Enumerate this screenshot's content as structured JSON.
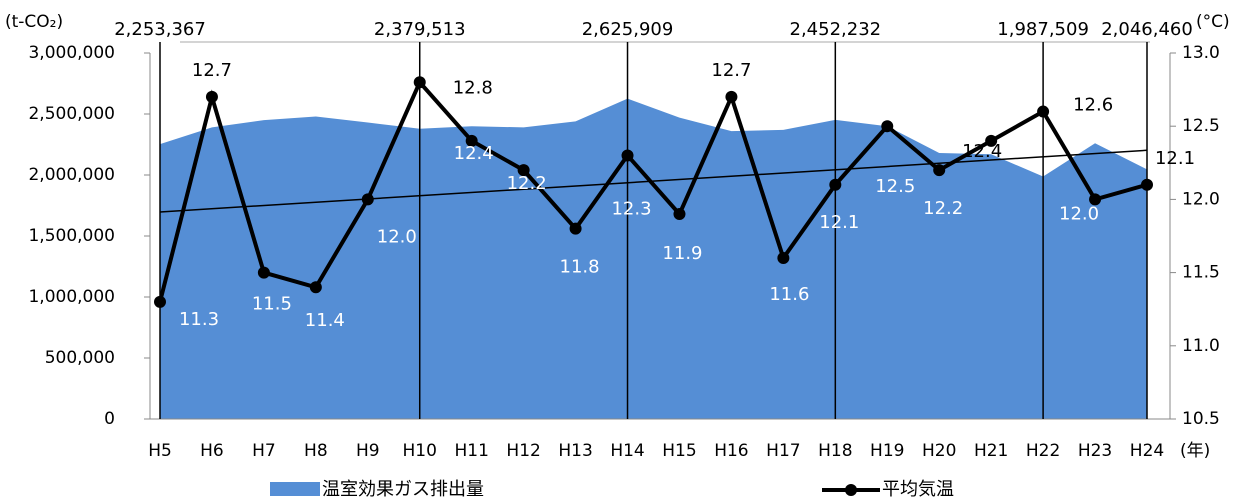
{
  "chart_data": {
    "type": "area-line",
    "categories": [
      "H5",
      "H6",
      "H7",
      "H8",
      "H9",
      "H10",
      "H11",
      "H12",
      "H13",
      "H14",
      "H15",
      "H16",
      "H17",
      "H18",
      "H19",
      "H20",
      "H21",
      "H22",
      "H23",
      "H24"
    ],
    "series": [
      {
        "name": "温室効果ガス排出量",
        "type": "area",
        "color": "#558ed5",
        "values": [
          2253367,
          2390000,
          2450000,
          2480000,
          2430000,
          2379513,
          2400000,
          2390000,
          2440000,
          2625909,
          2470000,
          2360000,
          2370000,
          2452232,
          2400000,
          2180000,
          2170000,
          1987509,
          2260000,
          2046460
        ],
        "value_labels": [
          "2,253,367",
          null,
          null,
          null,
          null,
          "2,379,513",
          null,
          null,
          null,
          "2,625,909",
          null,
          null,
          null,
          "2,452,232",
          null,
          null,
          null,
          "1,987,509",
          null,
          "2,046,460"
        ]
      },
      {
        "name": "平均気温",
        "type": "line",
        "axis": "y2",
        "color": "#000000",
        "trendline": true,
        "values": [
          11.3,
          12.7,
          11.5,
          11.4,
          12.0,
          12.8,
          12.4,
          12.2,
          11.8,
          12.3,
          11.9,
          12.7,
          11.6,
          12.1,
          12.5,
          12.2,
          12.4,
          12.6,
          12.0,
          12.1
        ],
        "value_labels": [
          "11.3",
          "12.7",
          "11.5",
          "11.4",
          "12.0",
          "12.8",
          "12.4",
          "12.2",
          "11.8",
          "12.3",
          "11.9",
          "12.7",
          "11.6",
          "12.1",
          "12.5",
          "12.2",
          "12.4",
          "12.6",
          "12.0",
          "12.1"
        ]
      }
    ],
    "y_label": "(t-CO₂)",
    "y2_label": "(°C)",
    "x_label": "(年)",
    "ylim": [
      0,
      3000000
    ],
    "yticks": [
      {
        "value": 0,
        "label": "0"
      },
      {
        "value": 500000,
        "label": "500,000"
      },
      {
        "value": 1000000,
        "label": "1,000,000"
      },
      {
        "value": 1500000,
        "label": "1,500,000"
      },
      {
        "value": 2000000,
        "label": "2,000,000"
      },
      {
        "value": 2500000,
        "label": "2,500,000"
      },
      {
        "value": 3000000,
        "label": "3,000,000"
      }
    ],
    "y2lim": [
      10.5,
      13.0
    ],
    "y2ticks": [
      10.5,
      {
        "value": 11,
        "label": "11.0"
      },
      11.5,
      {
        "value": 12,
        "label": "12.0"
      },
      12.5,
      {
        "value": 13,
        "label": "13.0"
      }
    ]
  }
}
